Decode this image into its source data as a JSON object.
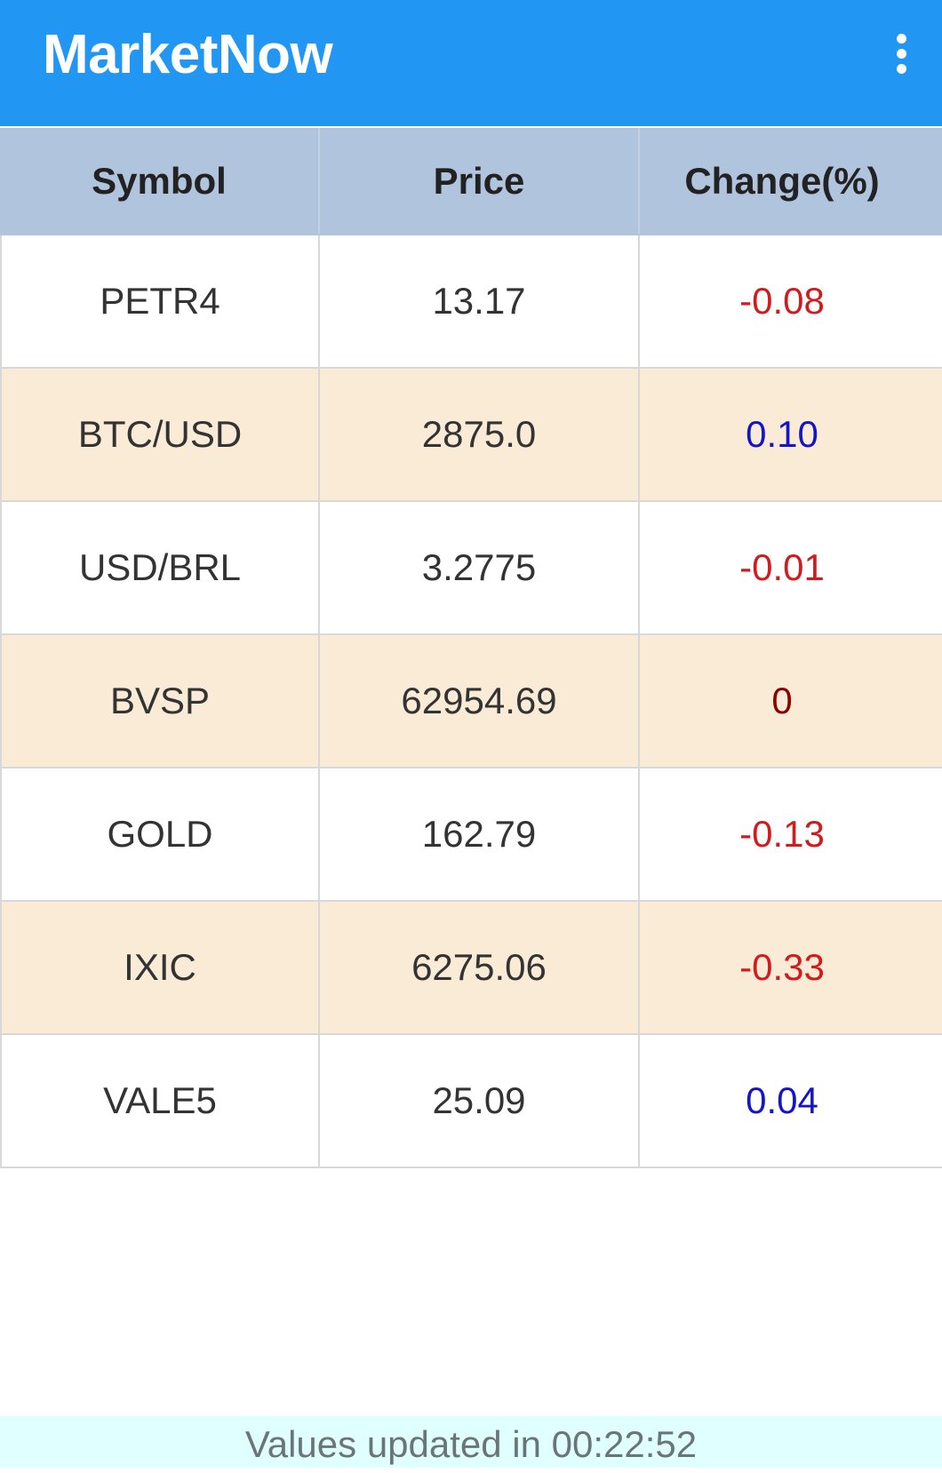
{
  "app": {
    "title": "MarketNow"
  },
  "toolbar": {
    "overflow_icon": "more-vert-icon"
  },
  "table": {
    "headers": [
      "Symbol",
      "Price",
      "Change(%)"
    ],
    "rows": [
      {
        "symbol": "PETR4",
        "price": "13.17",
        "change": "-0.08",
        "trend": "negative"
      },
      {
        "symbol": "BTC/USD",
        "price": "2875.0",
        "change": "0.10",
        "trend": "positive"
      },
      {
        "symbol": "USD/BRL",
        "price": "3.2775",
        "change": "-0.01",
        "trend": "negative"
      },
      {
        "symbol": "BVSP",
        "price": "62954.69",
        "change": "0",
        "trend": "neutral"
      },
      {
        "symbol": "GOLD",
        "price": "162.79",
        "change": "-0.13",
        "trend": "negative"
      },
      {
        "symbol": "IXIC",
        "price": "6275.06",
        "change": "-0.33",
        "trend": "negative"
      },
      {
        "symbol": "VALE5",
        "price": "25.09",
        "change": "0.04",
        "trend": "positive"
      }
    ]
  },
  "footer": {
    "status": "Values updated in 00:22:52"
  },
  "colors": {
    "appbar": "#2196f3",
    "header_bg": "#b0c4de",
    "row_alt_bg": "#faebd7",
    "negative": "#d01c1c",
    "positive": "#1414c8",
    "neutral": "#8b0000",
    "footer_bg": "#e0ffff"
  }
}
